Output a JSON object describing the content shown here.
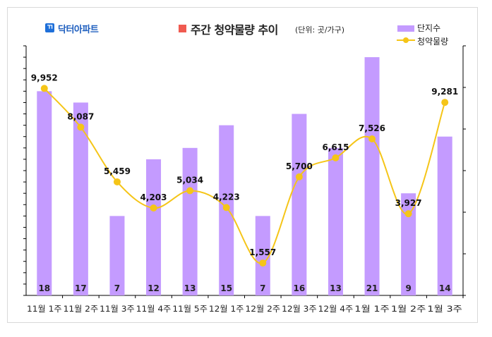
{
  "header": {
    "logo_glyph": "ㄲ",
    "logo_text": "닥터아파트",
    "title": "주간 청약물량 추이",
    "unit": "(단위: 곳/가구)"
  },
  "legend": {
    "bar_label": "단지수",
    "line_label": "청약물량"
  },
  "colors": {
    "bar": "#c49bff",
    "line": "#f5c518",
    "marker": "#f5c518",
    "title_square": "#f05a50",
    "logo": "#1e6fd9"
  },
  "chart_data": {
    "type": "bar",
    "categories": [
      "11월 1주",
      "11월 2주",
      "11월 3주",
      "11월 4주",
      "11월 5주",
      "12월 1주",
      "12월 2주",
      "12월 3주",
      "12월 4주",
      "1월 1주",
      "1월 2주",
      "1월 3주"
    ],
    "series": [
      {
        "name": "단지수",
        "type": "bar",
        "axis": "left",
        "values": [
          18,
          17,
          7,
          12,
          13,
          15,
          7,
          16,
          13,
          21,
          9,
          14
        ]
      },
      {
        "name": "청약물량",
        "type": "line",
        "axis": "right",
        "values": [
          9952,
          8087,
          5459,
          4203,
          5034,
          4223,
          1557,
          5700,
          6615,
          7526,
          3927,
          9281
        ],
        "labels": [
          "9,952",
          "8,087",
          "5,459",
          "4,203",
          "5,034",
          "4,223",
          "1,557",
          "5,700",
          "6,615",
          "7,526",
          "3,927",
          "9,281"
        ]
      }
    ],
    "left_axis": {
      "ylim": [
        0,
        22
      ],
      "tick_step": 1
    },
    "right_axis": {
      "ylim": [
        0,
        12000
      ],
      "tick_step": 2000
    },
    "grid": false,
    "legend_position": "top-right"
  }
}
